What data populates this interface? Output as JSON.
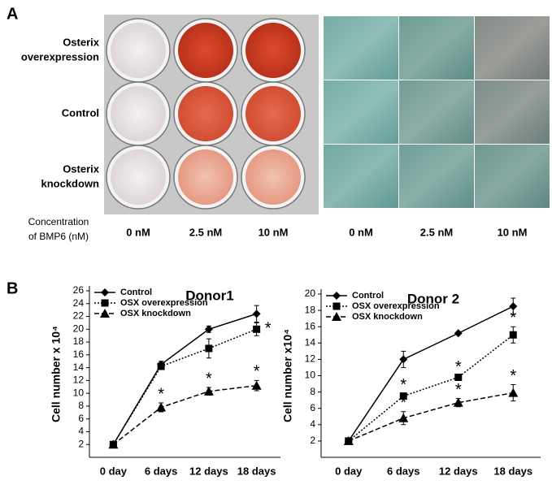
{
  "panel_a": {
    "label": "A",
    "row_labels": [
      [
        "Osterix",
        "overexpression"
      ],
      [
        "Control"
      ],
      [
        "Osterix",
        "knockdown"
      ]
    ],
    "concentration_label": [
      "Concentration",
      "of BMP6 (nM)"
    ],
    "plate_columns": [
      "0 nM",
      "2.5 nM",
      "10 nM"
    ],
    "micro_columns": [
      "0 nM",
      "2.5 nM",
      "10 nM"
    ]
  },
  "panel_b": {
    "label": "B"
  },
  "chart_data": [
    {
      "type": "line",
      "title": "Donor1",
      "y_label": "Cell number x 10⁴",
      "categories": [
        "0 day",
        "6 days",
        "12 days",
        "18 days"
      ],
      "ylim": [
        0,
        26
      ],
      "yticks": [
        2,
        4,
        6,
        8,
        10,
        12,
        14,
        16,
        18,
        20,
        22,
        24,
        26
      ],
      "annotation": "*",
      "legend": "upper left",
      "series": [
        {
          "name": "Control",
          "color": "#000000",
          "line_style": "solid",
          "marker": "diamond",
          "values": [
            2,
            14.5,
            20,
            22.4
          ],
          "errors": [
            0,
            0.5,
            0.5,
            1.3
          ],
          "significant": [
            false,
            false,
            false,
            false
          ]
        },
        {
          "name": "OSX overexpression",
          "color": "#000000",
          "line_style": "dotted",
          "marker": "square",
          "values": [
            2,
            14.2,
            17,
            20
          ],
          "errors": [
            0,
            0.5,
            1.5,
            1
          ],
          "significant": [
            false,
            false,
            false,
            true
          ]
        },
        {
          "name": "OSX knockdown",
          "color": "#000000",
          "line_style": "dashed",
          "marker": "triangle",
          "values": [
            2,
            7.8,
            10.3,
            11.2
          ],
          "errors": [
            0,
            0.7,
            0.6,
            0.8
          ],
          "significant": [
            false,
            true,
            true,
            true
          ]
        }
      ]
    },
    {
      "type": "line",
      "title": "Donor 2",
      "y_label": "Cell number x10⁴",
      "categories": [
        "0 day",
        "6 days",
        "12 days",
        "18 days"
      ],
      "ylim": [
        0,
        20
      ],
      "yticks": [
        2,
        4,
        6,
        8,
        10,
        12,
        14,
        16,
        18,
        20
      ],
      "annotation": "*",
      "legend": "upper left",
      "series": [
        {
          "name": "Control",
          "color": "#000000",
          "line_style": "solid",
          "marker": "diamond",
          "values": [
            2,
            12,
            15.2,
            18.5
          ],
          "errors": [
            0,
            1,
            0.1,
            1
          ],
          "significant": [
            false,
            false,
            false,
            false
          ]
        },
        {
          "name": "OSX overexpression",
          "color": "#000000",
          "line_style": "dotted",
          "marker": "square",
          "values": [
            2,
            7.5,
            9.8,
            15
          ],
          "errors": [
            0,
            0.3,
            0.2,
            1
          ],
          "significant": [
            false,
            true,
            true,
            true
          ]
        },
        {
          "name": "OSX knockdown",
          "color": "#000000",
          "line_style": "dashed",
          "marker": "triangle",
          "values": [
            2,
            4.8,
            6.7,
            7.9
          ],
          "errors": [
            0,
            0.8,
            0.5,
            1
          ],
          "significant": [
            false,
            true,
            true,
            true
          ]
        }
      ]
    }
  ]
}
